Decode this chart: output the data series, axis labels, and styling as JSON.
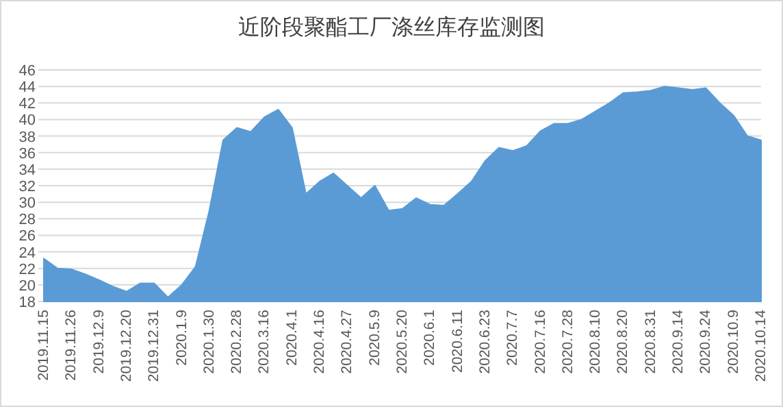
{
  "chart_data": {
    "type": "area",
    "title": "近阶段聚酯工厂涤丝库存监测图",
    "categories": [
      "2019.11.15",
      null,
      "2019.11.26",
      null,
      "2019.12.9",
      null,
      "2019.12.20",
      null,
      "2019.12.31",
      null,
      "2020.1.9",
      null,
      "2020.1.30",
      null,
      "2020.2.28",
      null,
      "2020.3.16",
      null,
      "2020.4.1",
      null,
      "2020.4.16",
      null,
      "2020.4.27",
      null,
      "2020.5.9",
      null,
      "2020.5.20",
      null,
      "2020.6.1",
      null,
      "2020.6.11",
      null,
      "2020.6.23",
      null,
      "2020.7.7",
      null,
      "2020.7.16",
      null,
      "2020.7.28",
      null,
      "2020.8.10",
      null,
      "2020.8.20",
      null,
      "2020.8.31",
      null,
      "2020.9.14",
      null,
      "2020.9.24",
      null,
      "2020.10.9",
      null,
      "2020.10.14"
    ],
    "values": [
      23.2,
      22,
      21.9,
      21.3,
      20.6,
      19.8,
      19.2,
      20.2,
      20.2,
      18.5,
      20,
      22.2,
      29,
      37.5,
      39,
      38.5,
      40.3,
      41.2,
      39,
      31,
      32.5,
      33.5,
      32,
      30.5,
      32,
      29,
      29.2,
      30.5,
      29.7,
      29.6,
      31,
      32.5,
      35,
      36.6,
      36.2,
      36.8,
      38.6,
      39.5,
      39.5,
      40,
      41,
      42,
      43.2,
      43.3,
      43.5,
      44,
      43.8,
      43.6,
      43.8,
      42,
      40.5,
      38,
      37.5
    ],
    "color": "#5b9bd5",
    "ylim": [
      18,
      46
    ],
    "yticks": [
      18,
      20,
      22,
      24,
      26,
      28,
      30,
      32,
      34,
      36,
      38,
      40,
      42,
      44,
      46
    ],
    "grid": "y"
  }
}
